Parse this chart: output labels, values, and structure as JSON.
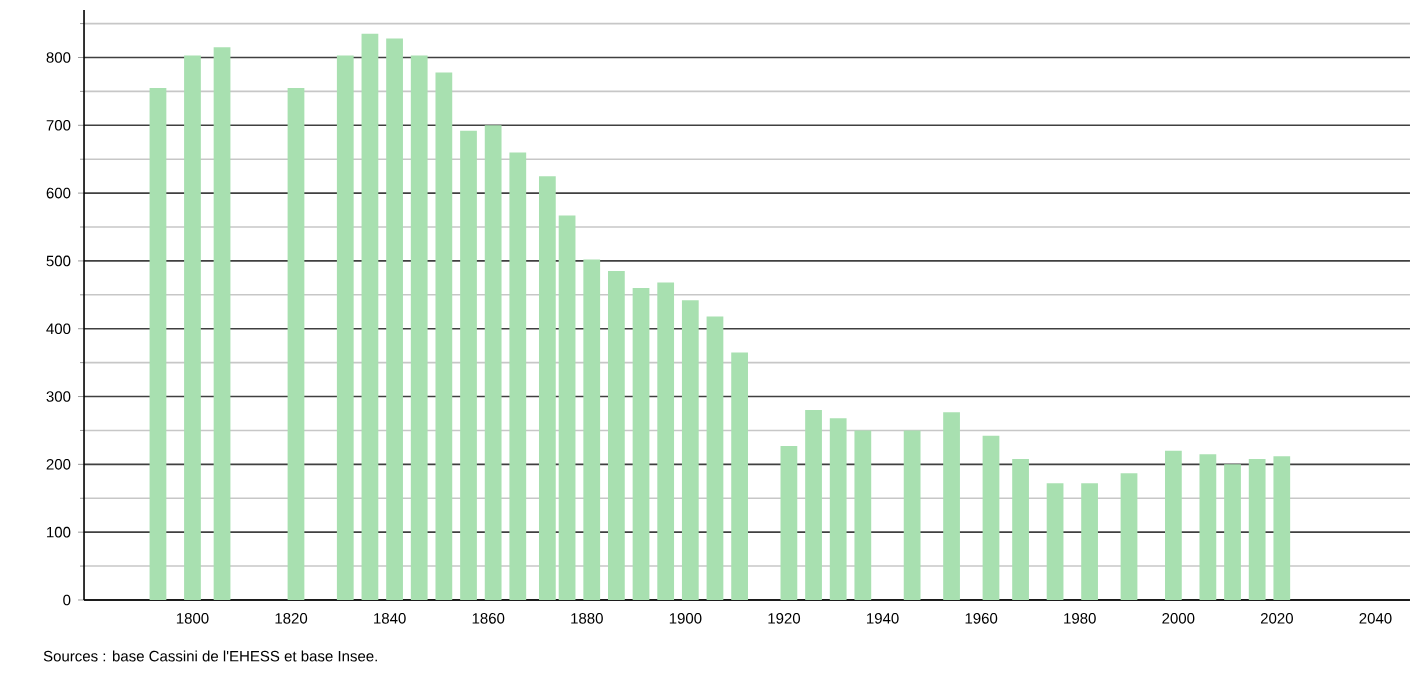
{
  "chart_data": {
    "type": "bar",
    "color": "#a8e0b0",
    "x": [
      1793,
      1800,
      1806,
      1821,
      1831,
      1836,
      1841,
      1846,
      1851,
      1856,
      1861,
      1866,
      1872,
      1876,
      1881,
      1886,
      1891,
      1896,
      1901,
      1906,
      1911,
      1921,
      1926,
      1931,
      1936,
      1946,
      1954,
      1962,
      1968,
      1975,
      1982,
      1990,
      1999,
      2006,
      2011,
      2016,
      2021
    ],
    "values": [
      755,
      803,
      815,
      755,
      803,
      835,
      828,
      803,
      778,
      692,
      700,
      660,
      625,
      567,
      502,
      485,
      460,
      468,
      442,
      418,
      365,
      227,
      280,
      268,
      250,
      250,
      277,
      242,
      208,
      172,
      172,
      187,
      220,
      215,
      200,
      208,
      212
    ],
    "xlim": [
      1778,
      2047
    ],
    "xticks": [
      1800,
      1820,
      1840,
      1860,
      1880,
      1900,
      1920,
      1940,
      1960,
      1980,
      2000,
      2020,
      2040
    ],
    "ylim": [
      0,
      870
    ],
    "yticks": [
      0,
      {
        "value": 50,
        "label": null
      },
      100,
      {
        "value": 150,
        "label": null
      },
      200,
      {
        "value": 250,
        "label": null
      },
      300,
      {
        "value": 350,
        "label": null
      },
      400,
      {
        "value": 450,
        "label": null
      },
      500,
      {
        "value": 550,
        "label": null
      },
      600,
      {
        "value": 650,
        "label": null
      },
      700,
      {
        "value": 750,
        "label": null
      },
      800,
      {
        "value": 850,
        "label": null
      }
    ],
    "grid": "y",
    "annotations": [
      "Sources : base Cassini de l'EHESS et base Insee."
    ]
  }
}
